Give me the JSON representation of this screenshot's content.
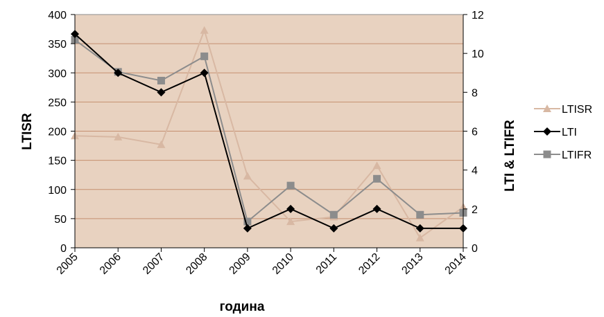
{
  "chart_data": {
    "type": "line",
    "categories": [
      "2005",
      "2006",
      "2007",
      "2008",
      "2009",
      "2010",
      "2011",
      "2012",
      "2013",
      "2014"
    ],
    "xlabel": "година",
    "ylabel": "LTISR",
    "y2label": "LTI & LTIFR",
    "ylim": [
      0,
      400
    ],
    "y2lim": [
      0,
      12
    ],
    "yticks": [
      "0",
      "50",
      "100",
      "150",
      "200",
      "250",
      "300",
      "350",
      "400"
    ],
    "y2ticks": [
      "0",
      "2",
      "4",
      "6",
      "8",
      "10",
      "12"
    ],
    "grid": true,
    "legend_position": "right",
    "plot_background": "#e8d2c0",
    "series": [
      {
        "name": "LTISR",
        "axis": "left",
        "marker": "triangle",
        "color": "#d8b8a3",
        "values": [
          192,
          190,
          177,
          373,
          123,
          45,
          53,
          141,
          17,
          70
        ]
      },
      {
        "name": "LTI",
        "axis": "right",
        "marker": "diamond",
        "color": "#000000",
        "values": [
          11,
          9,
          8,
          9,
          1,
          2,
          1,
          2,
          1,
          1
        ]
      },
      {
        "name": "LTIFR",
        "axis": "right",
        "marker": "square",
        "color": "#8c8c8c",
        "values": [
          10.7,
          9.05,
          8.6,
          9.85,
          1.35,
          3.2,
          1.7,
          3.55,
          1.7,
          1.8
        ]
      }
    ]
  }
}
